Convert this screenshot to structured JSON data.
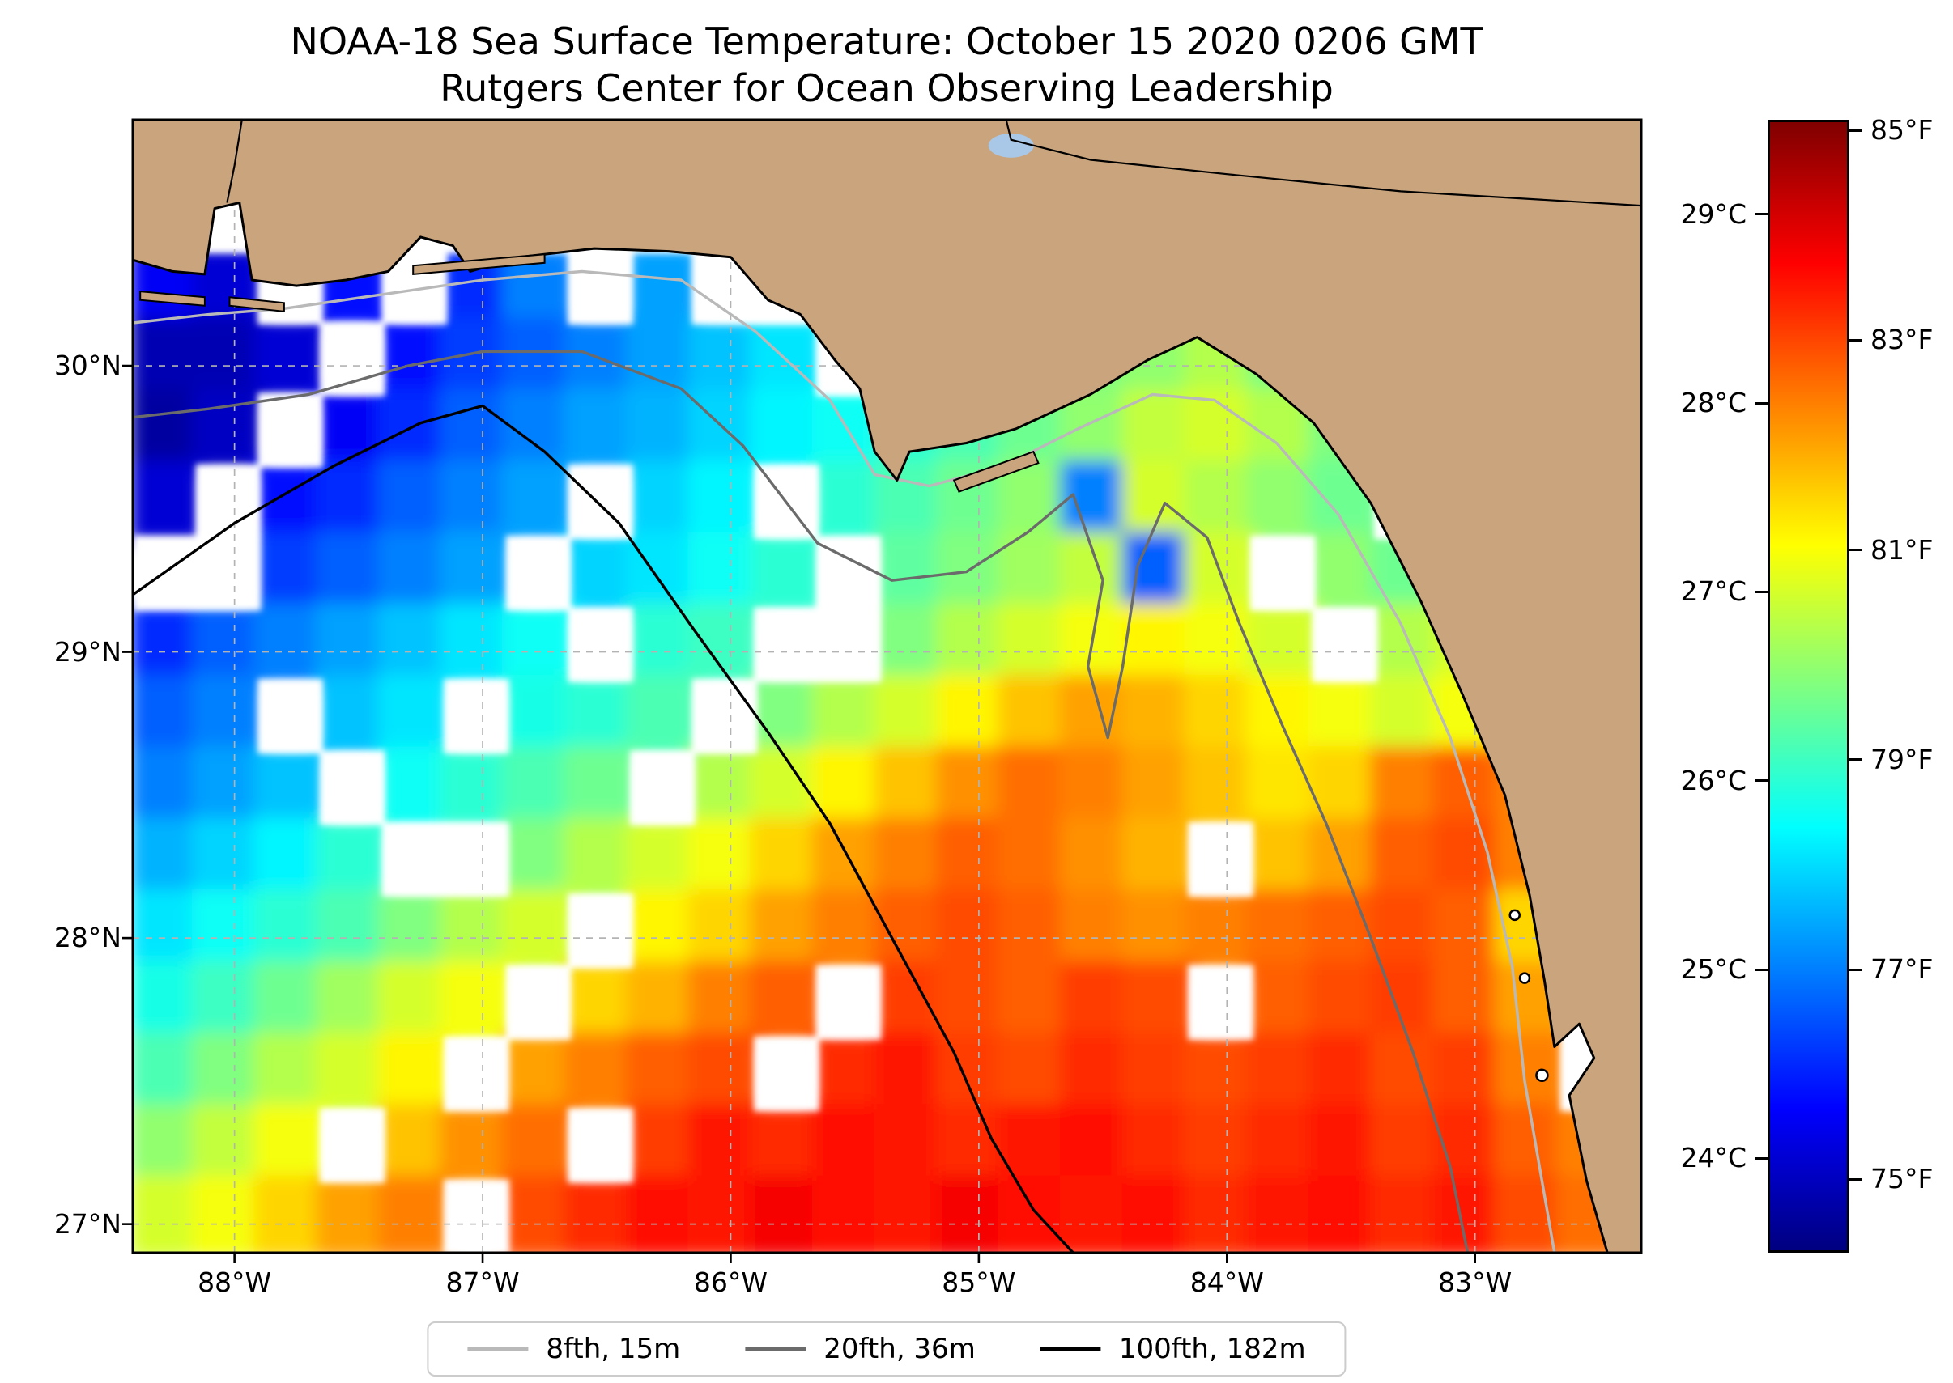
{
  "title": "NOAA-18 Sea Surface Temperature: October 15 2020 0206 GMT",
  "subtitle": "Rutgers Center for Ocean Observing Leadership",
  "axes": {
    "x_ticks": [
      {
        "label": "88°W",
        "lon": -88
      },
      {
        "label": "87°W",
        "lon": -87
      },
      {
        "label": "86°W",
        "lon": -86
      },
      {
        "label": "85°W",
        "lon": -85
      },
      {
        "label": "84°W",
        "lon": -84
      },
      {
        "label": "83°W",
        "lon": -83
      }
    ],
    "y_ticks": [
      {
        "label": "30°N",
        "lat": 30
      },
      {
        "label": "29°N",
        "lat": 29
      },
      {
        "label": "28°N",
        "lat": 28
      },
      {
        "label": "27°N",
        "lat": 27
      }
    ],
    "lon_range": [
      -88.41,
      -82.33
    ],
    "lat_range": [
      26.9,
      30.86
    ]
  },
  "colorbar": {
    "colormap": "jet",
    "range_c": [
      23.5,
      29.5
    ],
    "ticks_c": [
      {
        "label": "29°C",
        "value_c": 29
      },
      {
        "label": "28°C",
        "value_c": 28
      },
      {
        "label": "27°C",
        "value_c": 27
      },
      {
        "label": "26°C",
        "value_c": 26
      },
      {
        "label": "25°C",
        "value_c": 25
      },
      {
        "label": "24°C",
        "value_c": 24
      }
    ],
    "ticks_f": [
      {
        "label": "85°F",
        "value_c": 29.444
      },
      {
        "label": "83°F",
        "value_c": 28.333
      },
      {
        "label": "81°F",
        "value_c": 27.222
      },
      {
        "label": "79°F",
        "value_c": 26.111
      },
      {
        "label": "77°F",
        "value_c": 25.0
      },
      {
        "label": "75°F",
        "value_c": 23.889
      }
    ]
  },
  "legend": {
    "items": [
      {
        "label": "8fth, 15m",
        "color": "#b9b9b9"
      },
      {
        "label": "20fth, 36m",
        "color": "#6b6b6b"
      },
      {
        "label": "100fth, 182m",
        "color": "#000000"
      }
    ]
  },
  "map_colors": {
    "land": "#c9a47d",
    "ocean_nodata": "#ffffff",
    "lake": "#a9c8e8",
    "coastline": "#000000",
    "gridline": "#b3b3b3"
  },
  "chart_data": {
    "type": "heatmap",
    "title": "NOAA-18 Sea Surface Temperature: October 15 2020 0206 GMT",
    "subtitle": "Rutgers Center for Ocean Observing Leadership",
    "units": "°C",
    "lon_range": [
      -88.41,
      -82.33
    ],
    "lat_range": [
      26.9,
      30.86
    ],
    "colorbar_range_c": [
      23.5,
      29.5
    ],
    "contours": [
      {
        "name": "8fth, 15m",
        "depth_m": 15
      },
      {
        "name": "20fth, 36m",
        "depth_m": 36
      },
      {
        "name": "100fth, 182m",
        "depth_m": 182
      }
    ],
    "grid": {
      "cols": 25,
      "rows": 16,
      "lon_start": -88.4,
      "lon_step": 0.25,
      "lat_start": 30.9,
      "lat_step": -0.25,
      "values_c": [
        [
          null,
          null,
          null,
          null,
          null,
          null,
          null,
          null,
          null,
          null,
          null,
          null,
          null,
          null,
          null,
          null,
          null,
          null,
          null,
          null,
          null,
          null,
          null,
          null,
          null
        ],
        [
          null,
          null,
          null,
          null,
          null,
          null,
          null,
          null,
          null,
          null,
          null,
          null,
          null,
          null,
          null,
          null,
          null,
          null,
          null,
          null,
          null,
          null,
          null,
          null,
          null
        ],
        [
          24.2,
          24.0,
          null,
          24.3,
          null,
          24.5,
          25.0,
          null,
          25.2,
          null,
          null,
          null,
          null,
          null,
          null,
          null,
          null,
          null,
          null,
          null,
          null,
          null,
          null,
          null,
          null
        ],
        [
          23.8,
          23.8,
          24.0,
          null,
          24.3,
          24.6,
          24.8,
          25.0,
          25.2,
          25.4,
          25.6,
          null,
          null,
          null,
          26.3,
          26.5,
          26.6,
          26.8,
          26.5,
          null,
          null,
          null,
          null,
          null,
          null
        ],
        [
          23.7,
          23.9,
          null,
          24.2,
          24.5,
          24.8,
          25.0,
          25.2,
          25.3,
          25.5,
          25.7,
          25.8,
          26.0,
          26.2,
          26.4,
          26.6,
          26.9,
          27.0,
          26.8,
          26.5,
          null,
          null,
          null,
          null,
          null
        ],
        [
          24.0,
          null,
          24.3,
          24.5,
          24.8,
          25.0,
          25.2,
          null,
          25.5,
          25.7,
          null,
          26.0,
          26.2,
          26.4,
          26.6,
          25.0,
          27.0,
          26.8,
          26.6,
          26.4,
          null,
          null,
          null,
          null,
          null
        ],
        [
          null,
          null,
          24.6,
          24.8,
          25.0,
          25.2,
          null,
          25.5,
          25.6,
          25.8,
          26.0,
          null,
          26.3,
          26.5,
          26.7,
          26.9,
          24.8,
          27.0,
          null,
          26.6,
          26.4,
          null,
          null,
          null,
          null
        ],
        [
          24.5,
          24.8,
          25.0,
          25.2,
          25.4,
          25.6,
          25.8,
          null,
          26.0,
          26.1,
          null,
          null,
          26.5,
          26.8,
          27.0,
          27.2,
          27.3,
          27.2,
          27.0,
          null,
          26.8,
          27.0,
          null,
          null,
          null
        ],
        [
          24.8,
          25.0,
          null,
          25.4,
          25.6,
          null,
          25.9,
          26.0,
          26.2,
          null,
          26.5,
          26.8,
          27.0,
          27.3,
          27.6,
          27.8,
          27.7,
          27.5,
          27.3,
          27.2,
          27.0,
          27.2,
          null,
          null,
          null
        ],
        [
          25.0,
          25.2,
          25.4,
          null,
          25.8,
          26.0,
          26.2,
          26.4,
          null,
          26.8,
          27.0,
          27.3,
          27.6,
          27.9,
          28.1,
          28.0,
          27.8,
          27.6,
          27.4,
          27.5,
          28.0,
          28.2,
          28.0,
          null,
          null
        ],
        [
          25.3,
          25.5,
          25.7,
          26.0,
          null,
          null,
          26.5,
          26.8,
          27.0,
          27.2,
          27.5,
          27.8,
          28.0,
          28.2,
          28.1,
          27.9,
          27.7,
          null,
          27.6,
          27.8,
          28.2,
          28.3,
          28.0,
          null,
          null
        ],
        [
          25.6,
          25.8,
          26.0,
          26.2,
          26.5,
          26.8,
          27.0,
          null,
          27.3,
          27.5,
          27.8,
          28.0,
          28.2,
          28.3,
          28.2,
          28.0,
          27.9,
          28.0,
          28.1,
          28.2,
          28.3,
          28.2,
          27.5,
          null,
          null
        ],
        [
          25.9,
          26.1,
          26.4,
          26.7,
          27.0,
          27.2,
          null,
          27.5,
          27.7,
          28.0,
          28.2,
          null,
          28.4,
          28.3,
          28.2,
          28.4,
          28.3,
          null,
          28.2,
          28.3,
          28.4,
          28.2,
          27.8,
          null,
          null
        ],
        [
          26.2,
          26.5,
          26.8,
          27.0,
          27.3,
          null,
          27.8,
          28.0,
          28.2,
          28.3,
          null,
          28.5,
          28.6,
          28.4,
          28.3,
          28.5,
          28.4,
          28.3,
          28.4,
          28.5,
          28.3,
          28.4,
          28.0,
          null,
          null
        ],
        [
          26.6,
          26.9,
          27.2,
          null,
          27.6,
          27.9,
          28.1,
          null,
          28.4,
          28.6,
          28.5,
          28.7,
          28.6,
          28.5,
          28.6,
          28.7,
          28.5,
          28.4,
          28.5,
          28.6,
          28.4,
          28.5,
          28.2,
          28.0,
          null
        ],
        [
          27.0,
          27.2,
          27.5,
          27.8,
          28.0,
          null,
          28.3,
          28.5,
          28.7,
          28.6,
          28.8,
          28.7,
          28.6,
          28.8,
          28.7,
          28.6,
          28.7,
          28.5,
          28.6,
          28.7,
          28.5,
          28.6,
          28.3,
          28.1,
          null
        ]
      ]
    }
  }
}
